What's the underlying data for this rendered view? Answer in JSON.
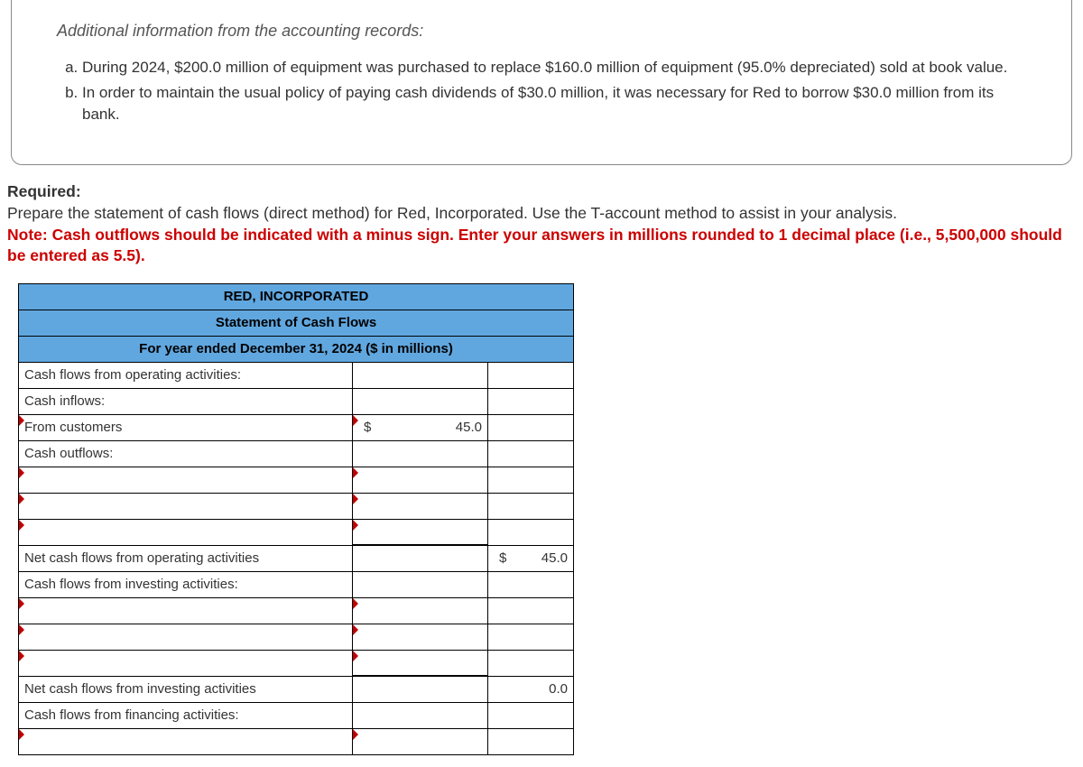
{
  "info": {
    "heading": "Additional information from the accounting records:",
    "items": [
      "During 2024, $200.0 million of equipment was purchased to replace $160.0 million of equipment (95.0% depreciated) sold at book value.",
      "In order to maintain the usual policy of paying cash dividends of $30.0 million, it was necessary for Red to borrow $30.0 million from its bank."
    ]
  },
  "required": {
    "label": "Required:",
    "body": "Prepare the statement of cash flows (direct method) for Red, Incorporated. Use the T-account method to assist in your analysis.",
    "note": "Note: Cash outflows should be indicated with a minus sign. Enter your answers in millions rounded to 1 decimal place (i.e., 5,500,000 should be entered as 5.5)."
  },
  "statement": {
    "company": "RED, INCORPORATED",
    "title": "Statement of Cash Flows",
    "period": "For year ended December 31, 2024 ($ in millions)",
    "rows": {
      "op_header": "Cash flows from operating activities:",
      "inflows": "Cash inflows:",
      "from_customers": {
        "label": "From customers",
        "currency": "$",
        "amount": "45.0"
      },
      "outflows": "Cash outflows:",
      "net_op": {
        "label": "Net cash flows from operating activities",
        "currency": "$",
        "amount": "45.0"
      },
      "inv_header": "Cash flows from investing activities:",
      "net_inv": {
        "label": "Net cash flows from investing activities",
        "amount": "0.0"
      },
      "fin_header": "Cash flows from financing activities:"
    }
  }
}
